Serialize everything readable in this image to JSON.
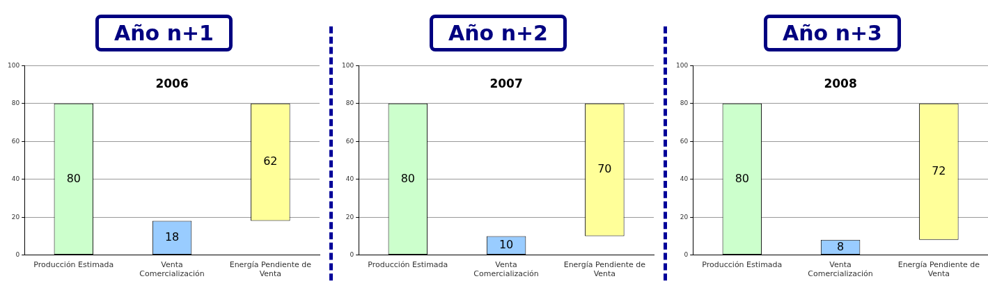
{
  "chart_data": [
    {
      "type": "bar",
      "title": "Año n+1",
      "subtitle": "2006",
      "categories": [
        "Producción Estimada",
        "Venta Comercialización",
        "Energía Pendiente de Venta"
      ],
      "values": [
        80,
        18,
        62
      ],
      "base": [
        0,
        0,
        18
      ],
      "colors": [
        "#ccffcc",
        "#99ccff",
        "#ffff99"
      ],
      "ylim": [
        0,
        100
      ],
      "yticks": [
        0,
        20,
        40,
        60,
        80,
        100
      ],
      "grid": "y",
      "data_labels": true
    },
    {
      "type": "bar",
      "title": "Año n+2",
      "subtitle": "2007",
      "categories": [
        "Producción Estimada",
        "Venta Comercialización",
        "Energía Pendiente de Venta"
      ],
      "values": [
        80,
        10,
        70
      ],
      "base": [
        0,
        0,
        10
      ],
      "colors": [
        "#ccffcc",
        "#99ccff",
        "#ffff99"
      ],
      "ylim": [
        0,
        100
      ],
      "yticks": [
        0,
        20,
        40,
        60,
        80,
        100
      ],
      "grid": "y",
      "data_labels": true
    },
    {
      "type": "bar",
      "title": "Año n+3",
      "subtitle": "2008",
      "categories": [
        "Producción Estimada",
        "Venta Comercialización",
        "Energía Pendiente de Venta"
      ],
      "values": [
        80,
        8,
        72
      ],
      "base": [
        0,
        0,
        8
      ],
      "colors": [
        "#ccffcc",
        "#99ccff",
        "#ffff99"
      ],
      "ylim": [
        0,
        100
      ],
      "yticks": [
        0,
        20,
        40,
        60,
        80,
        100
      ],
      "grid": "y",
      "data_labels": true
    }
  ]
}
